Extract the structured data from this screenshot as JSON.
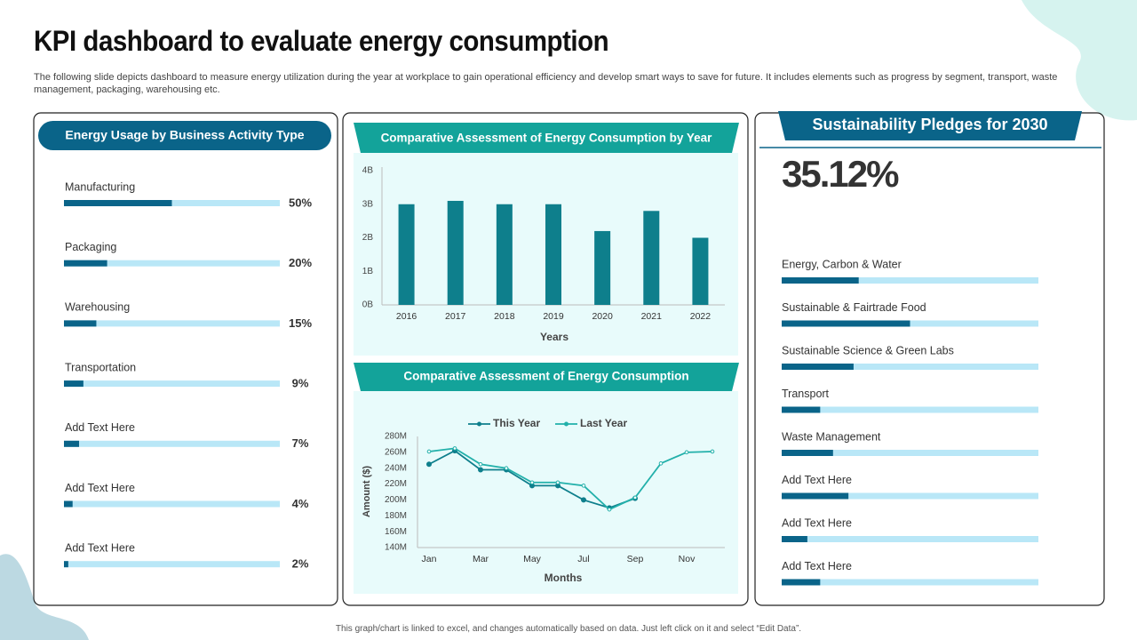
{
  "title": "KPI dashboard to evaluate energy consumption",
  "description": "The following slide depicts dashboard to measure energy utilization during the year at workplace to gain operational efficiency and develop smart ways to save for future. It includes elements such as progress by segment, transport, waste management, packaging, warehousing etc.",
  "footer": "This graph/chart is linked to excel, and changes automatically based on data. Just left click on it and select “Edit Data”.",
  "left_panel": {
    "title": "Energy Usage by Business Activity  Type",
    "items": [
      {
        "label": "Manufacturing",
        "value": 50,
        "value_label": "50%"
      },
      {
        "label": "Packaging",
        "value": 20,
        "value_label": "20%"
      },
      {
        "label": "Warehousing",
        "value": 15,
        "value_label": "15%"
      },
      {
        "label": "Transportation",
        "value": 9,
        "value_label": "9%"
      },
      {
        "label": "Add Text Here",
        "value": 7,
        "value_label": "7%"
      },
      {
        "label": "Add Text Here",
        "value": 4,
        "value_label": "4%"
      },
      {
        "label": "Add Text Here",
        "value": 2,
        "value_label": "2%"
      }
    ]
  },
  "right_panel": {
    "title": "Sustainability Pledges for 2030",
    "headline": "35.12%",
    "items": [
      {
        "label": "Energy, Carbon & Water",
        "value": 30
      },
      {
        "label": "Sustainable & Fairtrade Food",
        "value": 50
      },
      {
        "label": "Sustainable Science & Green Labs",
        "value": 28
      },
      {
        "label": "Transport",
        "value": 15
      },
      {
        "label": "Waste Management",
        "value": 20
      },
      {
        "label": "Add Text Here",
        "value": 26
      },
      {
        "label": "Add Text Here",
        "value": 10
      },
      {
        "label": "Add Text Here",
        "value": 15
      }
    ]
  },
  "chart_data": [
    {
      "type": "bar",
      "title": "Comparative Assessment of Energy Consumption by Year",
      "xlabel": "Years",
      "categories": [
        "2016",
        "2017",
        "2018",
        "2019",
        "2020",
        "2021",
        "2022"
      ],
      "values": [
        3,
        3.1,
        3,
        3,
        2.2,
        2.8,
        2
      ],
      "color": "#0e7f8c",
      "ylim": [
        0,
        4
      ],
      "yticks": [
        {
          "value": 0,
          "label": "0B"
        },
        {
          "value": 1,
          "label": "1B"
        },
        {
          "value": 2,
          "label": "2B"
        },
        {
          "value": 3,
          "label": "3B"
        },
        {
          "value": 4,
          "label": "4B"
        }
      ]
    },
    {
      "type": "line",
      "title": "Comparative Assessment of Energy Consumption",
      "xlabel": "Months",
      "ylabel": "Amount ($)",
      "categories": [
        "Jan",
        null,
        "Mar",
        null,
        "May",
        null,
        "Jul",
        null,
        "Sep",
        null,
        "Nov",
        null
      ],
      "series": [
        {
          "name": "This Year",
          "color": "#0e7f8c",
          "values": [
            245,
            262,
            238,
            238,
            218,
            218,
            200,
            190,
            202,
            null,
            null,
            null
          ]
        },
        {
          "name": "Last Year",
          "color": "#22b0aa",
          "values": [
            261,
            265,
            245,
            240,
            222,
            222,
            218,
            188,
            203,
            246,
            260,
            261
          ]
        }
      ],
      "ylim": [
        140,
        280
      ],
      "yticks": [
        {
          "value": 140,
          "label": "140M"
        },
        {
          "value": 160,
          "label": "160M"
        },
        {
          "value": 180,
          "label": "180M"
        },
        {
          "value": 200,
          "label": "200M"
        },
        {
          "value": 220,
          "label": "220M"
        },
        {
          "value": 240,
          "label": "240M"
        },
        {
          "value": 260,
          "label": "260M"
        },
        {
          "value": 280,
          "label": "280M"
        }
      ],
      "legend": "top"
    }
  ]
}
